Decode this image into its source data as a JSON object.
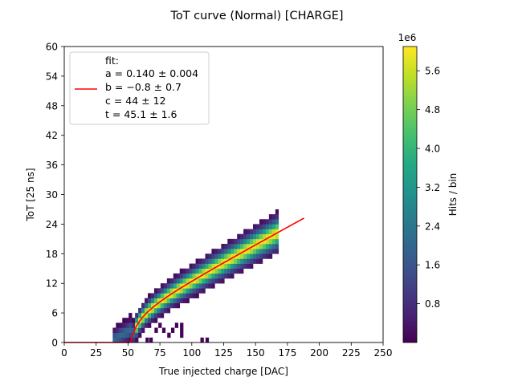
{
  "chart_data": {
    "type": "heatmap",
    "title": "ToT curve (Normal) [CHARGE]",
    "xlabel": "True injected charge [DAC]",
    "ylabel": "ToT [25 ns]",
    "xlim": [
      0,
      250
    ],
    "ylim": [
      0,
      60
    ],
    "xticks": [
      0,
      25,
      50,
      75,
      100,
      125,
      150,
      175,
      200,
      225,
      250
    ],
    "yticks": [
      0,
      6,
      12,
      18,
      24,
      30,
      36,
      42,
      48,
      54,
      60
    ],
    "grid": false,
    "colormap": "viridis",
    "colorbar": {
      "label": "Hits / bin",
      "offset_label": "1e6",
      "ticks": [
        "0.8",
        "1.6",
        "2.4",
        "3.2",
        "4.0",
        "4.8",
        "5.6"
      ],
      "tick_values": [
        0.8,
        1.6,
        2.4,
        3.2,
        4.0,
        4.8,
        5.6
      ],
      "vmin": 0,
      "vmax": 6.1
    },
    "hist": {
      "bin_width_x": 2.5,
      "bin_height_y": 1,
      "charge_range": [
        38,
        168
      ],
      "band_center_formula": "ToT = a*q + b - c/(q - t)",
      "band_peak_value": 6.0,
      "outliers": [
        {
          "x": 112,
          "y": 0.5,
          "value": 0.05
        },
        {
          "x": 108,
          "y": 0.5,
          "value": 0.05
        },
        {
          "x": 72,
          "y": 2.5,
          "value": 0.05
        },
        {
          "x": 75,
          "y": 3.5,
          "value": 0.05
        },
        {
          "x": 78,
          "y": 2.5,
          "value": 0.05
        },
        {
          "x": 85,
          "y": 2.5,
          "value": 0.05
        },
        {
          "x": 88,
          "y": 3.5,
          "value": 0.05
        },
        {
          "x": 92,
          "y": 1.5,
          "value": 0.05
        },
        {
          "x": 92,
          "y": 2.5,
          "value": 0.05
        },
        {
          "x": 92,
          "y": 3.5,
          "value": 0.05
        },
        {
          "x": 82,
          "y": 1.5,
          "value": 0.05
        },
        {
          "x": 65,
          "y": 0.5,
          "value": 0.05
        },
        {
          "x": 68,
          "y": 0.5,
          "value": 0.05
        }
      ]
    },
    "fit": {
      "name": "fit:",
      "color": "#ff0000",
      "a": 0.14,
      "b": -0.8,
      "c": 44,
      "t": 45.1,
      "x_range": [
        0,
        188
      ],
      "legend_lines": [
        "fit:",
        "a = 0.140 ± 0.004",
        "b = −0.8 ± 0.7",
        "c = 44 ± 12",
        "t = 45.1 ± 1.6"
      ]
    },
    "legend_position": "upper left"
  }
}
